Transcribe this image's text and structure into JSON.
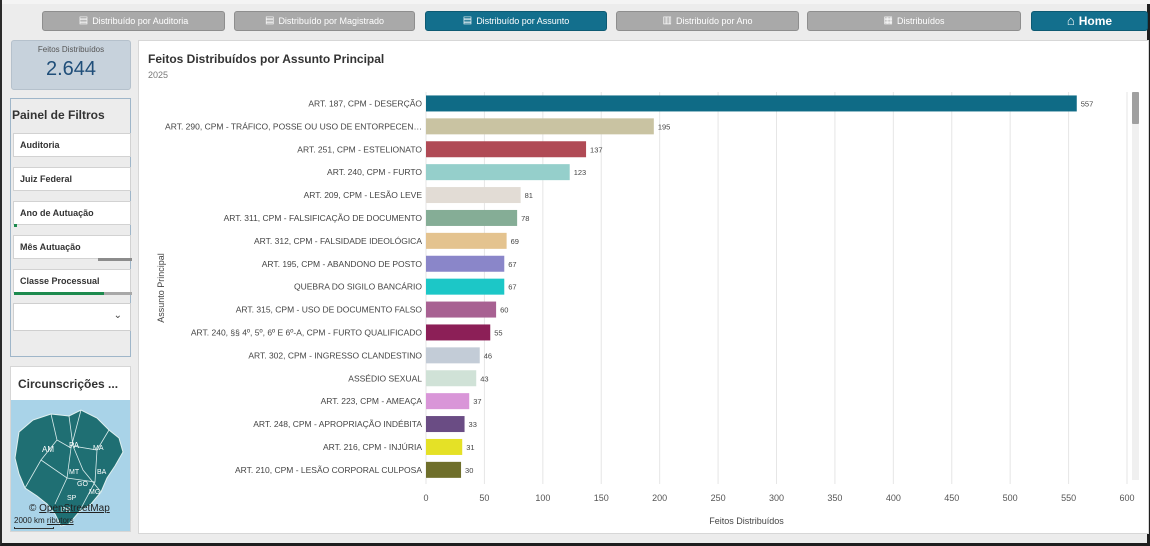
{
  "nav": {
    "items": [
      {
        "label": "Distribuído por Auditoria",
        "icon": "list-icon"
      },
      {
        "label": "Distribuído por Magistrado",
        "icon": "list-icon"
      },
      {
        "label": "Distribuído por Assunto",
        "icon": "list-icon"
      },
      {
        "label": "Distribuído por Ano",
        "icon": "bar-chart-icon"
      },
      {
        "label": "Distribuídos",
        "icon": "table-icon"
      }
    ],
    "home_label": "Home",
    "active_index": 2
  },
  "kpi": {
    "label": "Feitos Distribuídos",
    "value": "2.644"
  },
  "filters": {
    "title": "Painel de Filtros",
    "items": [
      "Auditoria",
      "Juiz Federal",
      "Ano de Autuação",
      "Mês Autuação",
      "Classe Processual"
    ]
  },
  "map": {
    "title": "Circunscrições ...",
    "attribution_symbol": "©",
    "attribution_link": "OpenStreetMap",
    "attribution_rest": "ributors",
    "scale_label": "2000 km",
    "labels": [
      "RR",
      "AP",
      "AM",
      "PA",
      "MA",
      "CE",
      "RN",
      "PB",
      "PE",
      "AC",
      "RO",
      "TO",
      "PI",
      "AL",
      "SE",
      "MT",
      "BA",
      "GO",
      "DF",
      "MS",
      "MG",
      "ES",
      "SP",
      "RJ",
      "PR",
      "SC",
      "RS"
    ]
  },
  "colors": {
    "accent": "#136f8d",
    "nav_gray": "#a9a9a9",
    "kpi_bg": "#c7d2dc"
  },
  "chart_data": {
    "type": "bar",
    "orientation": "horizontal",
    "title": "Feitos Distribuídos por Assunto Principal",
    "subtitle": "2025",
    "xlabel": "Feitos Distribuídos",
    "ylabel": "Assunto Principal",
    "xlim": [
      0,
      600
    ],
    "xticks": [
      0,
      50,
      100,
      150,
      200,
      250,
      300,
      350,
      400,
      450,
      500,
      550,
      600
    ],
    "grid": true,
    "categories": [
      "ART. 187, CPM - DESERÇÃO",
      "ART. 290, CPM - TRÁFICO, POSSE OU USO DE ENTORPECEN…",
      "ART. 251, CPM - ESTELIONATO",
      "ART. 240, CPM - FURTO",
      "ART. 209, CPM - LESÃO LEVE",
      "ART. 311, CPM - FALSIFICAÇÃO DE DOCUMENTO",
      "ART. 312, CPM - FALSIDADE IDEOLÓGICA",
      "ART. 195, CPM - ABANDONO DE POSTO",
      "QUEBRA DO SIGILO BANCÁRIO",
      "ART. 315, CPM - USO DE DOCUMENTO FALSO",
      "ART. 240, §§ 4º, 5º,  6º E 6º-A, CPM - FURTO QUALIFICADO",
      "ART. 302, CPM - INGRESSO CLANDESTINO",
      "ASSÉDIO SEXUAL",
      "ART. 223, CPM - AMEAÇA",
      "ART. 248, CPM - APROPRIAÇÃO INDÉBITA",
      "ART. 216, CPM - INJÚRIA",
      "ART. 210, CPM - LESÃO CORPORAL CULPOSA"
    ],
    "values": [
      557,
      195,
      137,
      123,
      81,
      78,
      69,
      67,
      67,
      60,
      55,
      46,
      43,
      37,
      33,
      31,
      30
    ],
    "bar_colors": [
      "#0f6b86",
      "#c9c3a2",
      "#b04a55",
      "#95cfcb",
      "#e2dcd5",
      "#85ad96",
      "#e4c38f",
      "#8a86c9",
      "#1cc7c7",
      "#a86192",
      "#8c1f57",
      "#c3ccd7",
      "#d0e2d7",
      "#d996d8",
      "#6a4c84",
      "#e5e126",
      "#6f6f2b"
    ]
  }
}
